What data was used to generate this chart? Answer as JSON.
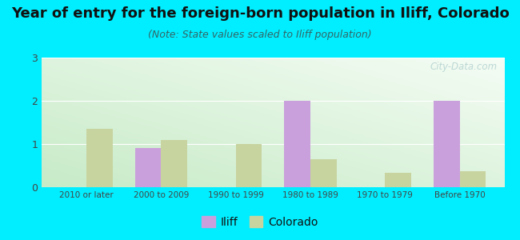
{
  "title": "Year of entry for the foreign-born population in Iliff, Colorado",
  "subtitle": "(Note: State values scaled to Iliff population)",
  "categories": [
    "2010 or later",
    "2000 to 2009",
    "1990 to 1999",
    "1980 to 1989",
    "1970 to 1979",
    "Before 1970"
  ],
  "iliff_values": [
    0,
    0.9,
    0,
    2.0,
    0,
    2.0
  ],
  "colorado_values": [
    1.35,
    1.1,
    1.0,
    0.65,
    0.33,
    0.37
  ],
  "iliff_color": "#c9a0dc",
  "colorado_color": "#c8d4a0",
  "background_color": "#00eeff",
  "ylim": [
    0,
    3
  ],
  "yticks": [
    0,
    1,
    2,
    3
  ],
  "bar_width": 0.35,
  "title_fontsize": 13,
  "subtitle_fontsize": 9,
  "watermark": "City-Data.com"
}
